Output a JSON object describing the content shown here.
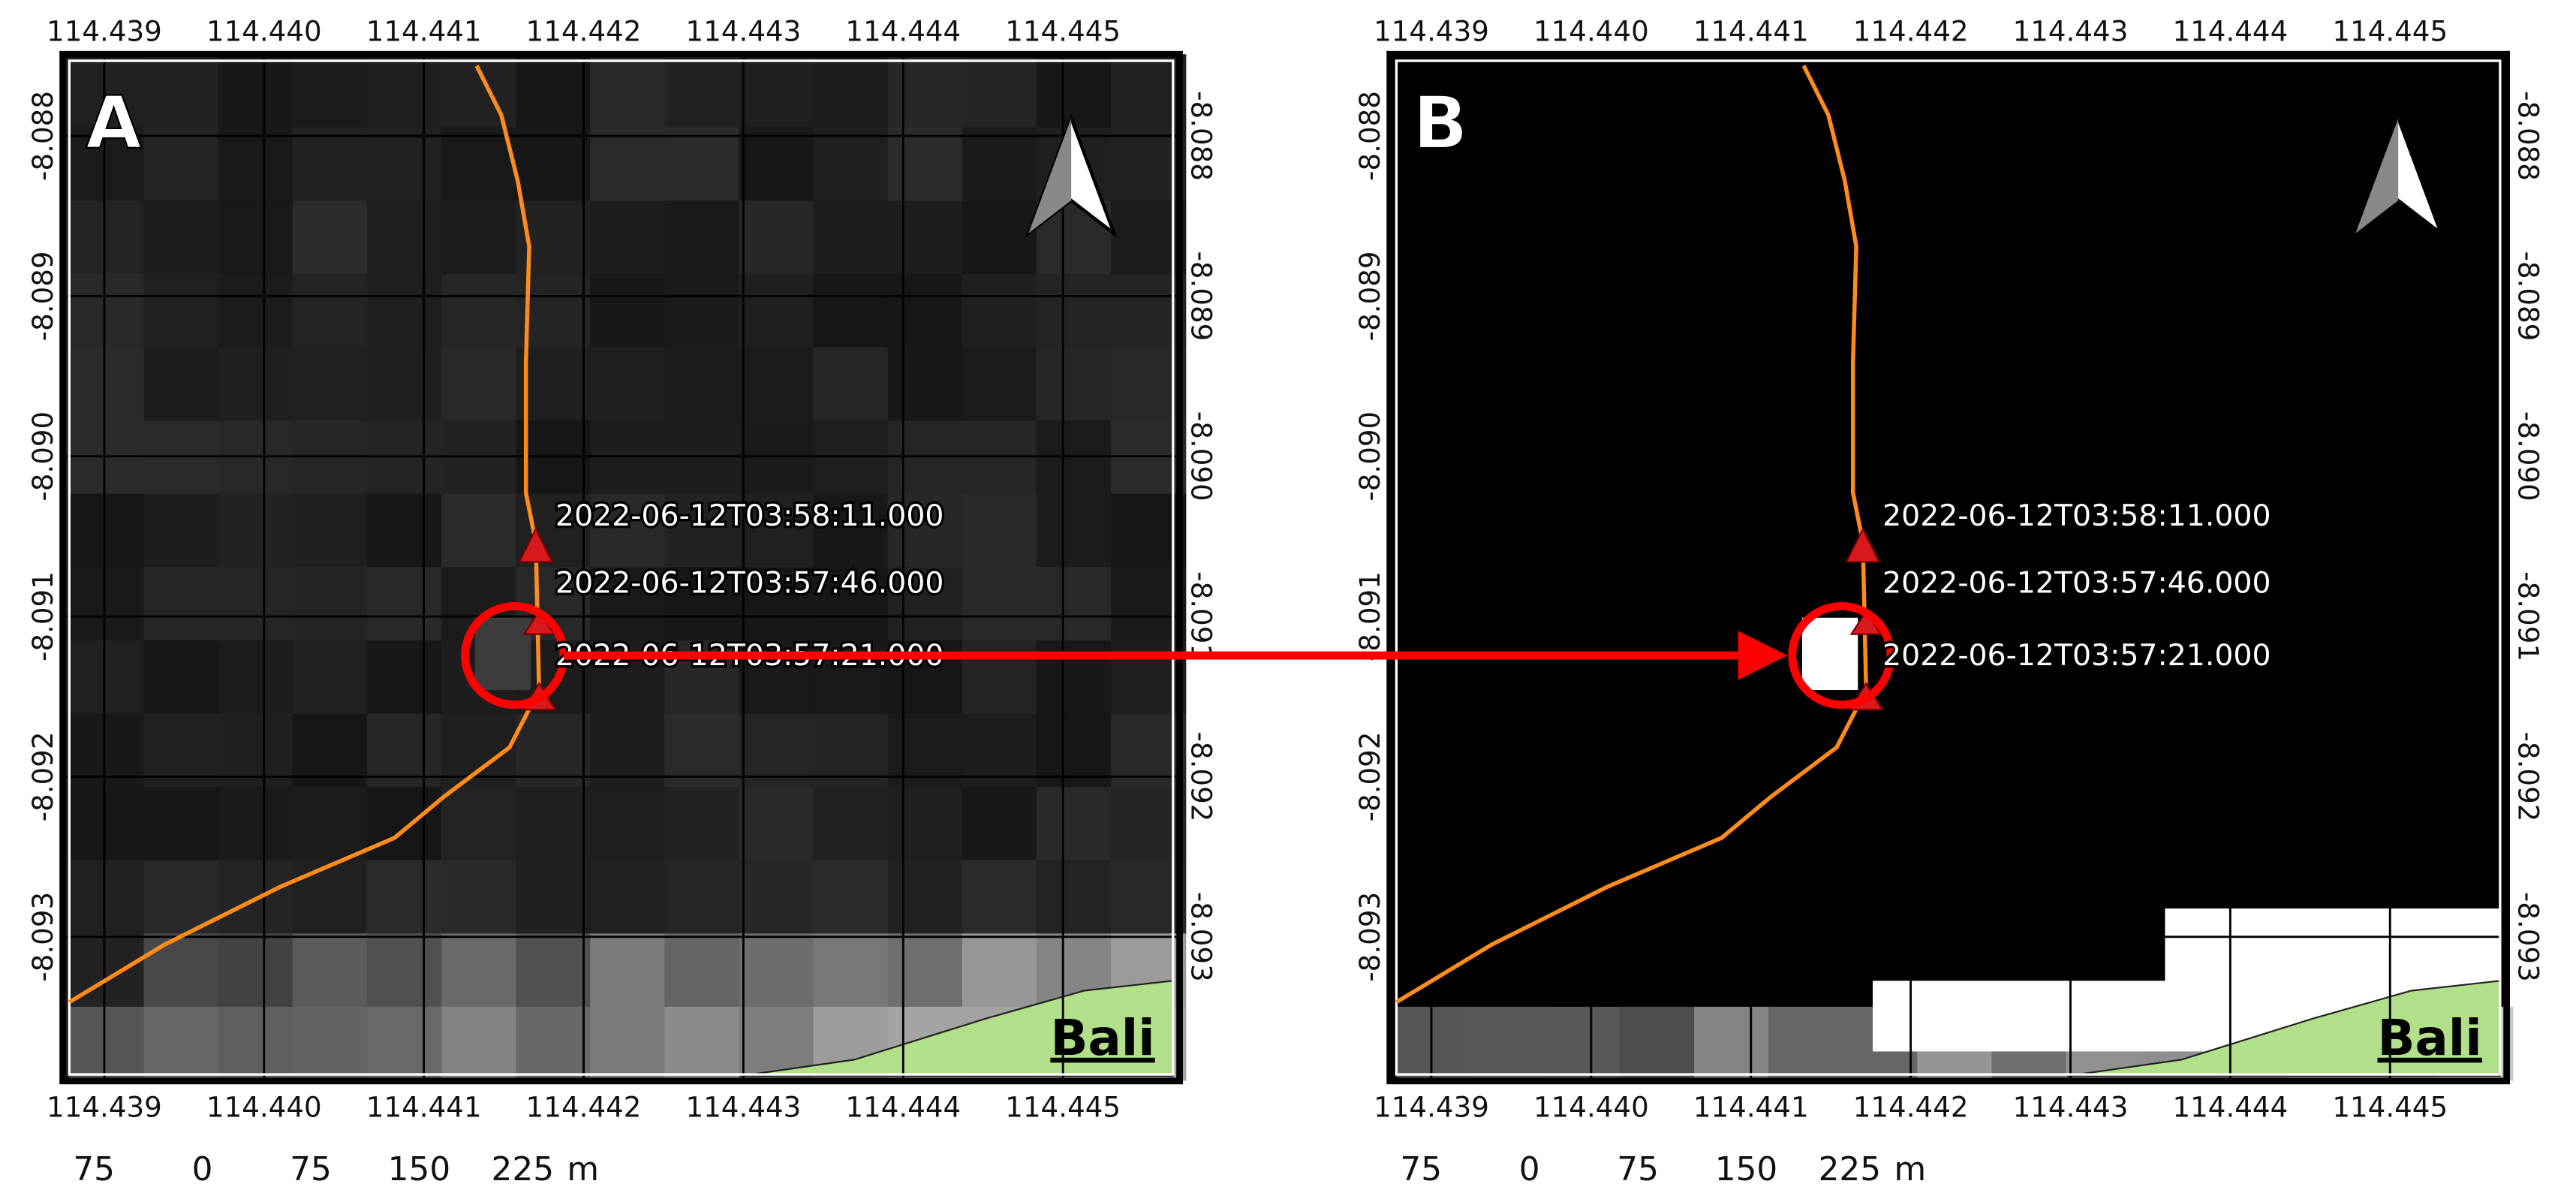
{
  "axes": {
    "x_ticks": [
      114.439,
      {
        "value": 114.44,
        "label": "114.440"
      },
      114.441,
      114.442,
      114.443,
      114.444,
      114.445
    ],
    "y_ticks": [
      -8.088,
      -8.089,
      {
        "value": -8.09,
        "label": "-8.090"
      },
      -8.091,
      -8.092,
      -8.093
    ]
  },
  "scale_bar": {
    "labels": [
      75,
      0,
      75,
      150,
      225
    ],
    "unit": "m"
  },
  "panels": [
    {
      "label": "A",
      "place": "Bali",
      "timestamps": [
        "2022-06-12T03:58:11.000",
        "2022-06-12T03:57:46.000",
        "2022-06-12T03:57:21.000"
      ]
    },
    {
      "label": "B",
      "place": "Bali",
      "timestamps": [
        "2022-06-12T03:58:11.000",
        "2022-06-12T03:57:46.000",
        "2022-06-12T03:57:21.000"
      ]
    }
  ]
}
